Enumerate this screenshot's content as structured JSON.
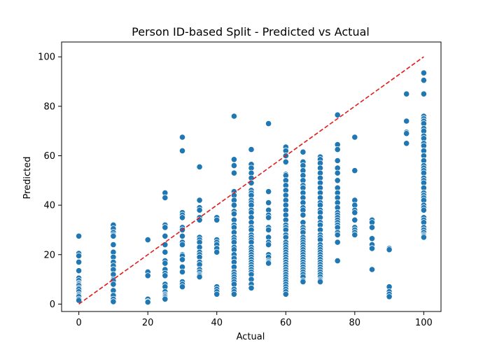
{
  "chart_data": {
    "type": "scatter",
    "title": "Person ID-based Split - Predicted vs Actual",
    "xlabel": "Actual",
    "ylabel": "Predicted",
    "xlim": [
      -5,
      105
    ],
    "ylim": [
      -3,
      106
    ],
    "xticks": [
      "0",
      "20",
      "40",
      "60",
      "80",
      "100"
    ],
    "xtick_values": [
      0,
      20,
      40,
      60,
      80,
      100
    ],
    "yticks": [
      "0",
      "20",
      "40",
      "60",
      "80",
      "100"
    ],
    "ytick_values": [
      0,
      20,
      40,
      60,
      80,
      100
    ],
    "grid": false,
    "marker_color": "#1f77b4",
    "marker_edge_color": "#ffffff",
    "reference_line": {
      "from": [
        0,
        0
      ],
      "to": [
        100,
        100
      ],
      "color": "#e41a1c",
      "style": "dashed"
    },
    "series": [
      {
        "x": [
          0,
          0,
          0,
          0,
          0,
          0,
          0,
          0,
          0,
          0,
          0,
          0,
          0,
          0,
          0,
          0,
          0,
          0,
          10,
          10,
          10,
          10,
          10,
          10,
          10,
          10,
          10,
          10,
          10,
          10,
          10,
          10,
          10,
          10,
          10,
          10,
          10,
          20,
          20,
          20,
          20,
          20,
          20,
          25,
          25,
          25,
          25,
          25,
          25,
          25,
          25,
          25,
          25,
          25,
          25,
          25,
          25,
          25,
          25,
          25,
          25,
          25,
          25,
          30,
          30,
          30,
          30,
          30,
          30,
          30,
          30,
          30,
          30,
          30,
          30,
          30,
          30,
          30,
          30,
          30,
          30,
          35,
          35,
          35,
          35,
          35,
          35,
          35,
          35,
          35,
          35,
          35,
          35,
          35,
          35,
          35,
          35,
          35,
          35,
          35,
          35,
          40,
          40,
          40,
          40,
          40,
          40,
          40,
          40,
          40,
          40,
          40,
          45,
          45,
          45,
          45,
          45,
          45,
          45,
          45,
          45,
          45,
          45,
          45,
          45,
          45,
          45,
          45,
          45,
          45,
          45,
          45,
          45,
          45,
          45,
          45,
          45,
          45,
          45,
          45,
          45,
          45,
          45,
          45,
          50,
          50,
          50,
          50,
          50,
          50,
          50,
          50,
          50,
          50,
          50,
          50,
          50,
          50,
          50,
          50,
          50,
          50,
          50,
          50,
          50,
          50,
          50,
          50,
          50,
          50,
          50,
          50,
          50,
          50,
          50,
          50,
          50,
          50,
          50,
          50,
          50,
          55,
          55,
          55,
          55,
          55,
          55,
          55,
          55,
          55,
          55,
          55,
          55,
          55,
          55,
          55,
          55,
          60,
          60,
          60,
          60,
          60,
          60,
          60,
          60,
          60,
          60,
          60,
          60,
          60,
          60,
          60,
          60,
          60,
          60,
          60,
          60,
          60,
          60,
          60,
          60,
          60,
          60,
          60,
          60,
          60,
          60,
          60,
          60,
          60,
          60,
          60,
          60,
          60,
          60,
          60,
          60,
          60,
          60,
          65,
          65,
          65,
          65,
          65,
          65,
          65,
          65,
          65,
          65,
          65,
          65,
          65,
          65,
          65,
          65,
          65,
          65,
          65,
          65,
          65,
          65,
          65,
          65,
          65,
          65,
          65,
          65,
          65,
          65,
          65,
          65,
          65,
          65,
          65,
          65,
          65,
          70,
          70,
          70,
          70,
          70,
          70,
          70,
          70,
          70,
          70,
          70,
          70,
          70,
          70,
          70,
          70,
          70,
          70,
          70,
          70,
          70,
          70,
          70,
          70,
          70,
          70,
          70,
          70,
          70,
          70,
          70,
          70,
          70,
          70,
          70,
          70,
          70,
          70,
          75,
          75,
          75,
          75,
          75,
          75,
          75,
          75,
          75,
          75,
          75,
          75,
          75,
          75,
          75,
          75,
          75,
          75,
          75,
          75,
          75,
          75,
          75,
          80,
          80,
          80,
          80,
          80,
          80,
          80,
          80,
          80,
          80,
          80,
          85,
          85,
          85,
          85,
          85,
          85,
          85,
          90,
          90,
          90,
          90,
          90,
          90,
          95,
          95,
          95,
          95,
          95,
          100,
          100,
          100,
          100,
          100,
          100,
          100,
          100,
          100,
          100,
          100,
          100,
          100,
          100,
          100,
          100,
          100,
          100,
          100,
          100,
          100,
          100,
          100,
          100,
          100,
          100,
          100,
          100,
          100,
          100,
          100,
          100,
          100,
          100,
          100,
          100,
          100,
          100,
          100,
          100
        ],
        "y": [
          27.5,
          20.5,
          19.5,
          17,
          13.5,
          10.5,
          9.5,
          8.5,
          8,
          7.5,
          6.5,
          6,
          5,
          4,
          3.5,
          3,
          2,
          1.5,
          32,
          30.5,
          29,
          28,
          27.5,
          24,
          21,
          19,
          17,
          15.5,
          14,
          12,
          10,
          9.5,
          8,
          5.5,
          3.5,
          2,
          1,
          26,
          13,
          11.5,
          2,
          1,
          0.8,
          45,
          43,
          32,
          31,
          27.5,
          24,
          21,
          17.5,
          16.5,
          14,
          12.5,
          11.5,
          8,
          7,
          5,
          4,
          3.5,
          3,
          2.5,
          2,
          67.5,
          62,
          37,
          36,
          35,
          31,
          30,
          27.5,
          25,
          24,
          20,
          19.5,
          18,
          15,
          13,
          9,
          8,
          7,
          55.5,
          42,
          39,
          38,
          35,
          34,
          27,
          26,
          25,
          23,
          21,
          20,
          19,
          17,
          16,
          14,
          13,
          12,
          11.5,
          11,
          35,
          34,
          26,
          25,
          24,
          22.5,
          21,
          7,
          6,
          5,
          4,
          76,
          58.5,
          56,
          53,
          45.5,
          44,
          42,
          40,
          37.5,
          36.5,
          34,
          32,
          31,
          29,
          27,
          26,
          25,
          23,
          22,
          20,
          18.5,
          17,
          15,
          13,
          12,
          11,
          10,
          9,
          8,
          6,
          5,
          4,
          62.5,
          56.5,
          55,
          53,
          51,
          49,
          46,
          45,
          44,
          42,
          41,
          40,
          38,
          37,
          35,
          33,
          31,
          30,
          28,
          27,
          26,
          25,
          23,
          22,
          21,
          20,
          19,
          18,
          17,
          16,
          15,
          14,
          13,
          12,
          10,
          8,
          6.5,
          73,
          45.5,
          41,
          38,
          36,
          35,
          31,
          30,
          27,
          25,
          24,
          20,
          19,
          17.5,
          17,
          16.5,
          63.5,
          62,
          60,
          57.5,
          52.5,
          52,
          50,
          48,
          46,
          44,
          42,
          40,
          38,
          36,
          34,
          32,
          31,
          30,
          28,
          27,
          25,
          24,
          23,
          22,
          21,
          20,
          19,
          18,
          17,
          16,
          15,
          14,
          13,
          12,
          11,
          10,
          9,
          8,
          7,
          6,
          5,
          4,
          61.5,
          57.5,
          56,
          54,
          52,
          50,
          48,
          47,
          45,
          43,
          41,
          39,
          38,
          36,
          33,
          31,
          30,
          29,
          27,
          26,
          25,
          24,
          23,
          22,
          21,
          20,
          19,
          18,
          17,
          16,
          15,
          14,
          13,
          12,
          11,
          9.5,
          9,
          59.5,
          58.5,
          57,
          55,
          53,
          51,
          49,
          47,
          45,
          43,
          41,
          40,
          38,
          37,
          35,
          33,
          32,
          30,
          28,
          27,
          26,
          24,
          23,
          22,
          21,
          20,
          19,
          18,
          17,
          16,
          15,
          14,
          13,
          12,
          11,
          10,
          9.5,
          9,
          76.5,
          64.5,
          62.5,
          58,
          55,
          53,
          50,
          47,
          45,
          43,
          41,
          39,
          37,
          36,
          35,
          34,
          33,
          32,
          31,
          29,
          28,
          25,
          17.5,
          67.5,
          54,
          42,
          40,
          38,
          37,
          34,
          31,
          30,
          29,
          28,
          34,
          33,
          31,
          26.5,
          24,
          22.5,
          14,
          22.5,
          22,
          7,
          5,
          4,
          3,
          85,
          74,
          69.5,
          69,
          65,
          93.5,
          90.5,
          85,
          76,
          75,
          74,
          73,
          71,
          70,
          68,
          67,
          65,
          64,
          62,
          60,
          58,
          56,
          55,
          54,
          53,
          51,
          50,
          49,
          47,
          45,
          44,
          43,
          42,
          40,
          39,
          38,
          35,
          34,
          33,
          31,
          30,
          29,
          28,
          27.5,
          27
        ]
      }
    ]
  }
}
